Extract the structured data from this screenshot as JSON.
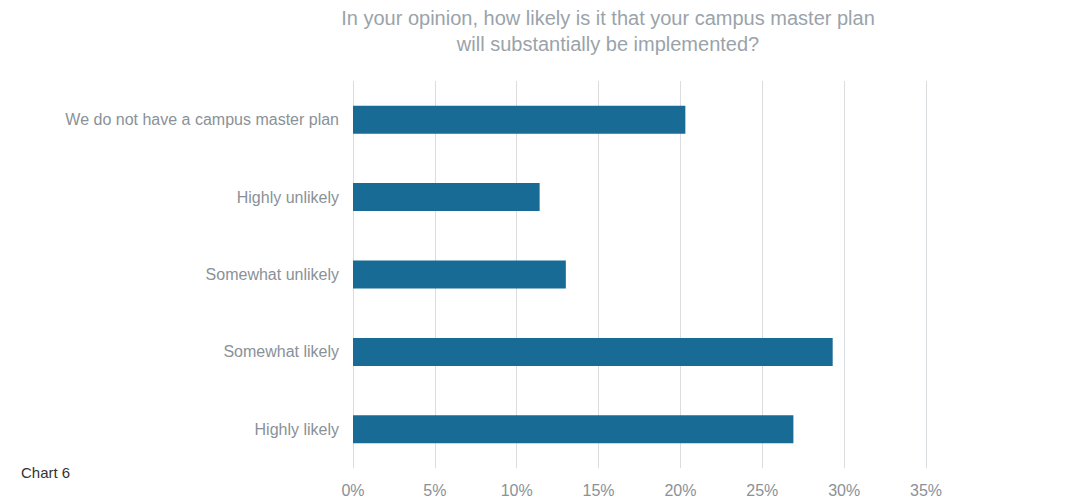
{
  "chart_data": {
    "type": "bar",
    "orientation": "horizontal",
    "title": "In your opinion, how likely is it that your campus master plan\nwill substantially be implemented?",
    "annotation": "Chart 6",
    "categories": [
      "We do not have a campus master plan",
      "Highly unlikely",
      "Somewhat unlikely",
      "Somewhat likely",
      "Highly likely"
    ],
    "values": [
      20.3,
      11.4,
      13.0,
      29.3,
      26.9
    ],
    "color": "#176b94",
    "xlim": [
      0,
      35
    ],
    "xticks": [
      {
        "value": 0,
        "label": "0%"
      },
      {
        "value": 5,
        "label": "5%"
      },
      {
        "value": 10,
        "label": "10%"
      },
      {
        "value": 15,
        "label": "15%"
      },
      {
        "value": 20,
        "label": "20%"
      },
      {
        "value": 25,
        "label": "25%"
      },
      {
        "value": 30,
        "label": "30%"
      },
      {
        "value": 35,
        "label": "35%"
      }
    ],
    "grid": true
  }
}
